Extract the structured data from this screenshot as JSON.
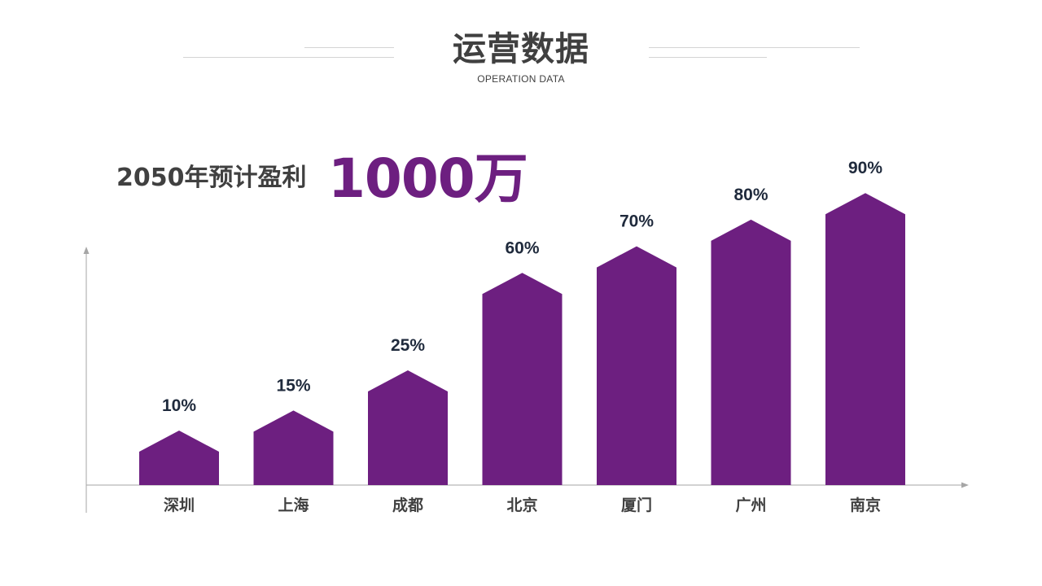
{
  "header": {
    "title": "运营数据",
    "subtitle": "OPERATION DATA"
  },
  "profit": {
    "label": "2050年预计盈利",
    "value": "1000万"
  },
  "colors": {
    "bar": "#6d1f80",
    "value_label": "#1f2a3c",
    "category_label": "#404040",
    "axis": "#a6a6a6"
  },
  "chart_data": {
    "type": "bar",
    "bar_shape": "house-arrow",
    "categories": [
      "深圳",
      "上海",
      "成都",
      "北京",
      "厦门",
      "广州",
      "南京"
    ],
    "values": [
      10,
      15,
      25,
      60,
      70,
      80,
      90
    ],
    "value_labels": [
      "10%",
      "15%",
      "25%",
      "60%",
      "70%",
      "80%",
      "90%"
    ],
    "title": "",
    "xlabel": "",
    "ylabel": "",
    "grid": false,
    "legend": "none"
  }
}
